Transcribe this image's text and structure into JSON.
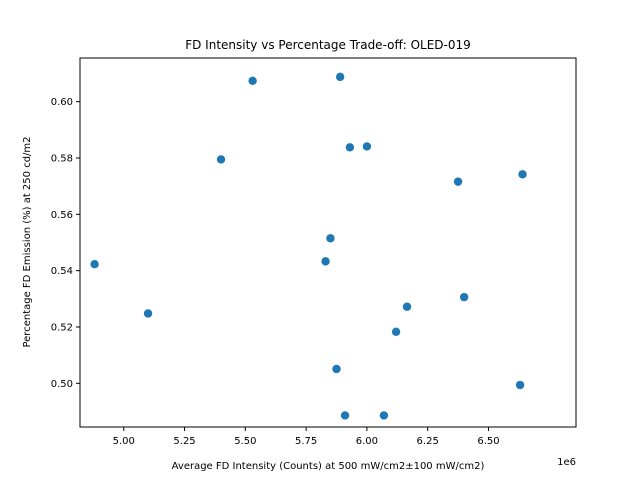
{
  "chart_data": {
    "type": "scatter",
    "title": "FD Intensity vs Percentage Trade-off: OLED-019",
    "xlabel": "Average FD Intensity (Counts) at 500 mW/cm2±100 mW/cm2)",
    "ylabel": "Percentage FD Emission (%) at 250 cd/m2",
    "x_offset_label": "1e6",
    "xlim": [
      4.82,
      6.86
    ],
    "ylim": [
      0.4845,
      0.6155
    ],
    "x_ticks": [
      5.0,
      5.25,
      5.5,
      5.75,
      6.0,
      6.25,
      6.5
    ],
    "x_tick_labels": [
      "5.00",
      "5.25",
      "5.50",
      "5.75",
      "6.00",
      "6.25",
      "6.50"
    ],
    "y_ticks": [
      0.5,
      0.52,
      0.54,
      0.56,
      0.58,
      0.6
    ],
    "y_tick_labels": [
      "0.50",
      "0.52",
      "0.54",
      "0.56",
      "0.58",
      "0.60"
    ],
    "grid": false,
    "marker_color": "#1f77b4",
    "points": [
      {
        "x": 4.88,
        "y": 0.5423
      },
      {
        "x": 5.1,
        "y": 0.5248
      },
      {
        "x": 5.4,
        "y": 0.5795
      },
      {
        "x": 5.53,
        "y": 0.6074
      },
      {
        "x": 5.83,
        "y": 0.5433
      },
      {
        "x": 5.85,
        "y": 0.5515
      },
      {
        "x": 5.875,
        "y": 0.5051
      },
      {
        "x": 5.89,
        "y": 0.6088
      },
      {
        "x": 5.91,
        "y": 0.4886
      },
      {
        "x": 5.93,
        "y": 0.5838
      },
      {
        "x": 6.0,
        "y": 0.5841
      },
      {
        "x": 6.07,
        "y": 0.4886
      },
      {
        "x": 6.12,
        "y": 0.5183
      },
      {
        "x": 6.165,
        "y": 0.5272
      },
      {
        "x": 6.375,
        "y": 0.5716
      },
      {
        "x": 6.4,
        "y": 0.5306
      },
      {
        "x": 6.63,
        "y": 0.4994
      },
      {
        "x": 6.64,
        "y": 0.5742
      }
    ]
  }
}
